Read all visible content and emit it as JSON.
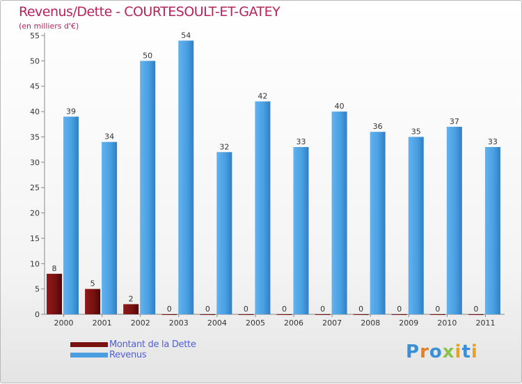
{
  "title": "Revenus/Dette - COURTESOULT-ET-GATEY",
  "subtitle": "(en milliers d'€)",
  "chart_data": {
    "type": "bar",
    "title": "Revenus/Dette - COURTESOULT-ET-GATEY",
    "ylabel": "(en milliers d'€)",
    "xlabel": "",
    "categories": [
      "2000",
      "2001",
      "2002",
      "2003",
      "2004",
      "2005",
      "2006",
      "2007",
      "2008",
      "2009",
      "2010",
      "2011"
    ],
    "series": [
      {
        "name": "Montant de la Dette",
        "color": "#7a1111",
        "values": [
          8,
          5,
          2,
          0,
          0,
          0,
          0,
          0,
          0,
          0,
          0,
          0
        ]
      },
      {
        "name": "Revenus",
        "color": "#4b9fe0",
        "values": [
          39,
          34,
          50,
          54,
          32,
          42,
          33,
          40,
          36,
          35,
          37,
          33
        ]
      }
    ],
    "ylim": [
      0,
      55
    ],
    "yticks": [
      0,
      5,
      10,
      15,
      20,
      25,
      30,
      35,
      40,
      45,
      50,
      55
    ],
    "grid": false,
    "legend": "bottom-left"
  },
  "legend": [
    {
      "label": "Montant de la Dette",
      "color": "#7a1111"
    },
    {
      "label": "Revenus",
      "color": "#4b9fe0"
    }
  ],
  "logo": {
    "letters": [
      "P",
      "r",
      "o",
      "x",
      "i",
      "t",
      "i"
    ],
    "colors": [
      "#3a8fd6",
      "#e67e22",
      "#3a8fd6",
      "#8bc34a",
      "#e6a21e",
      "#3a8fd6",
      "#e6a21e"
    ]
  }
}
